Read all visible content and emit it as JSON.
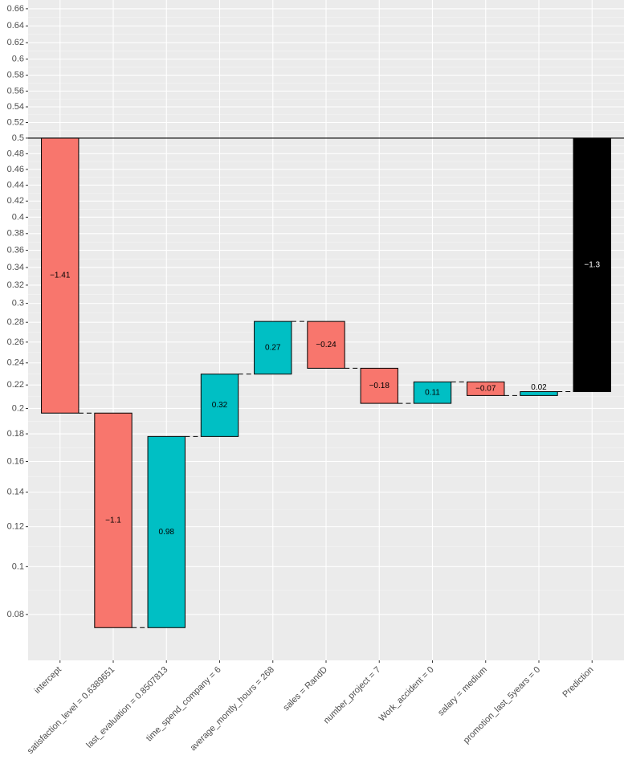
{
  "chart_data": {
    "type": "waterfall",
    "y_scale": "logit",
    "baseline": 0.5,
    "last_is_total": true,
    "categories": [
      "intercept",
      "satisfaction_level = 0.6389651",
      "last_evaluation = 0.8507813",
      "time_spend_company = 6",
      "average_montly_hours = 268",
      "sales = RandD",
      "number_project = 7",
      "Work_accident = 0",
      "salary = medium",
      "promotion_last_5years = 0",
      "Prediction"
    ],
    "values": [
      -1.41,
      -1.1,
      0.98,
      0.32,
      0.27,
      -0.24,
      -0.18,
      0.11,
      -0.07,
      0.02,
      -1.3
    ],
    "value_labels": [
      "−1.41",
      "−1.1",
      "0.98",
      "0.32",
      "0.27",
      "−0.24",
      "−0.18",
      "0.11",
      "−0.07",
      "0.02",
      "−1.3"
    ],
    "colors": [
      "#F8766D",
      "#F8766D",
      "#00BFC4",
      "#00BFC4",
      "#00BFC4",
      "#F8766D",
      "#F8766D",
      "#00BFC4",
      "#F8766D",
      "#00BFC4",
      "#000000"
    ],
    "ylim": [
      0.0643,
      0.67
    ],
    "yticks": [
      0.08,
      0.1,
      0.12,
      0.14,
      0.16,
      0.18,
      0.2,
      0.22,
      0.24,
      0.26,
      0.28,
      0.3,
      0.32,
      0.34,
      0.36,
      0.38,
      0.4,
      0.42,
      0.44,
      0.46,
      0.48,
      0.5,
      0.52,
      0.54,
      0.56,
      0.58,
      0.6,
      0.62,
      0.64,
      0.66
    ],
    "grid": true
  }
}
